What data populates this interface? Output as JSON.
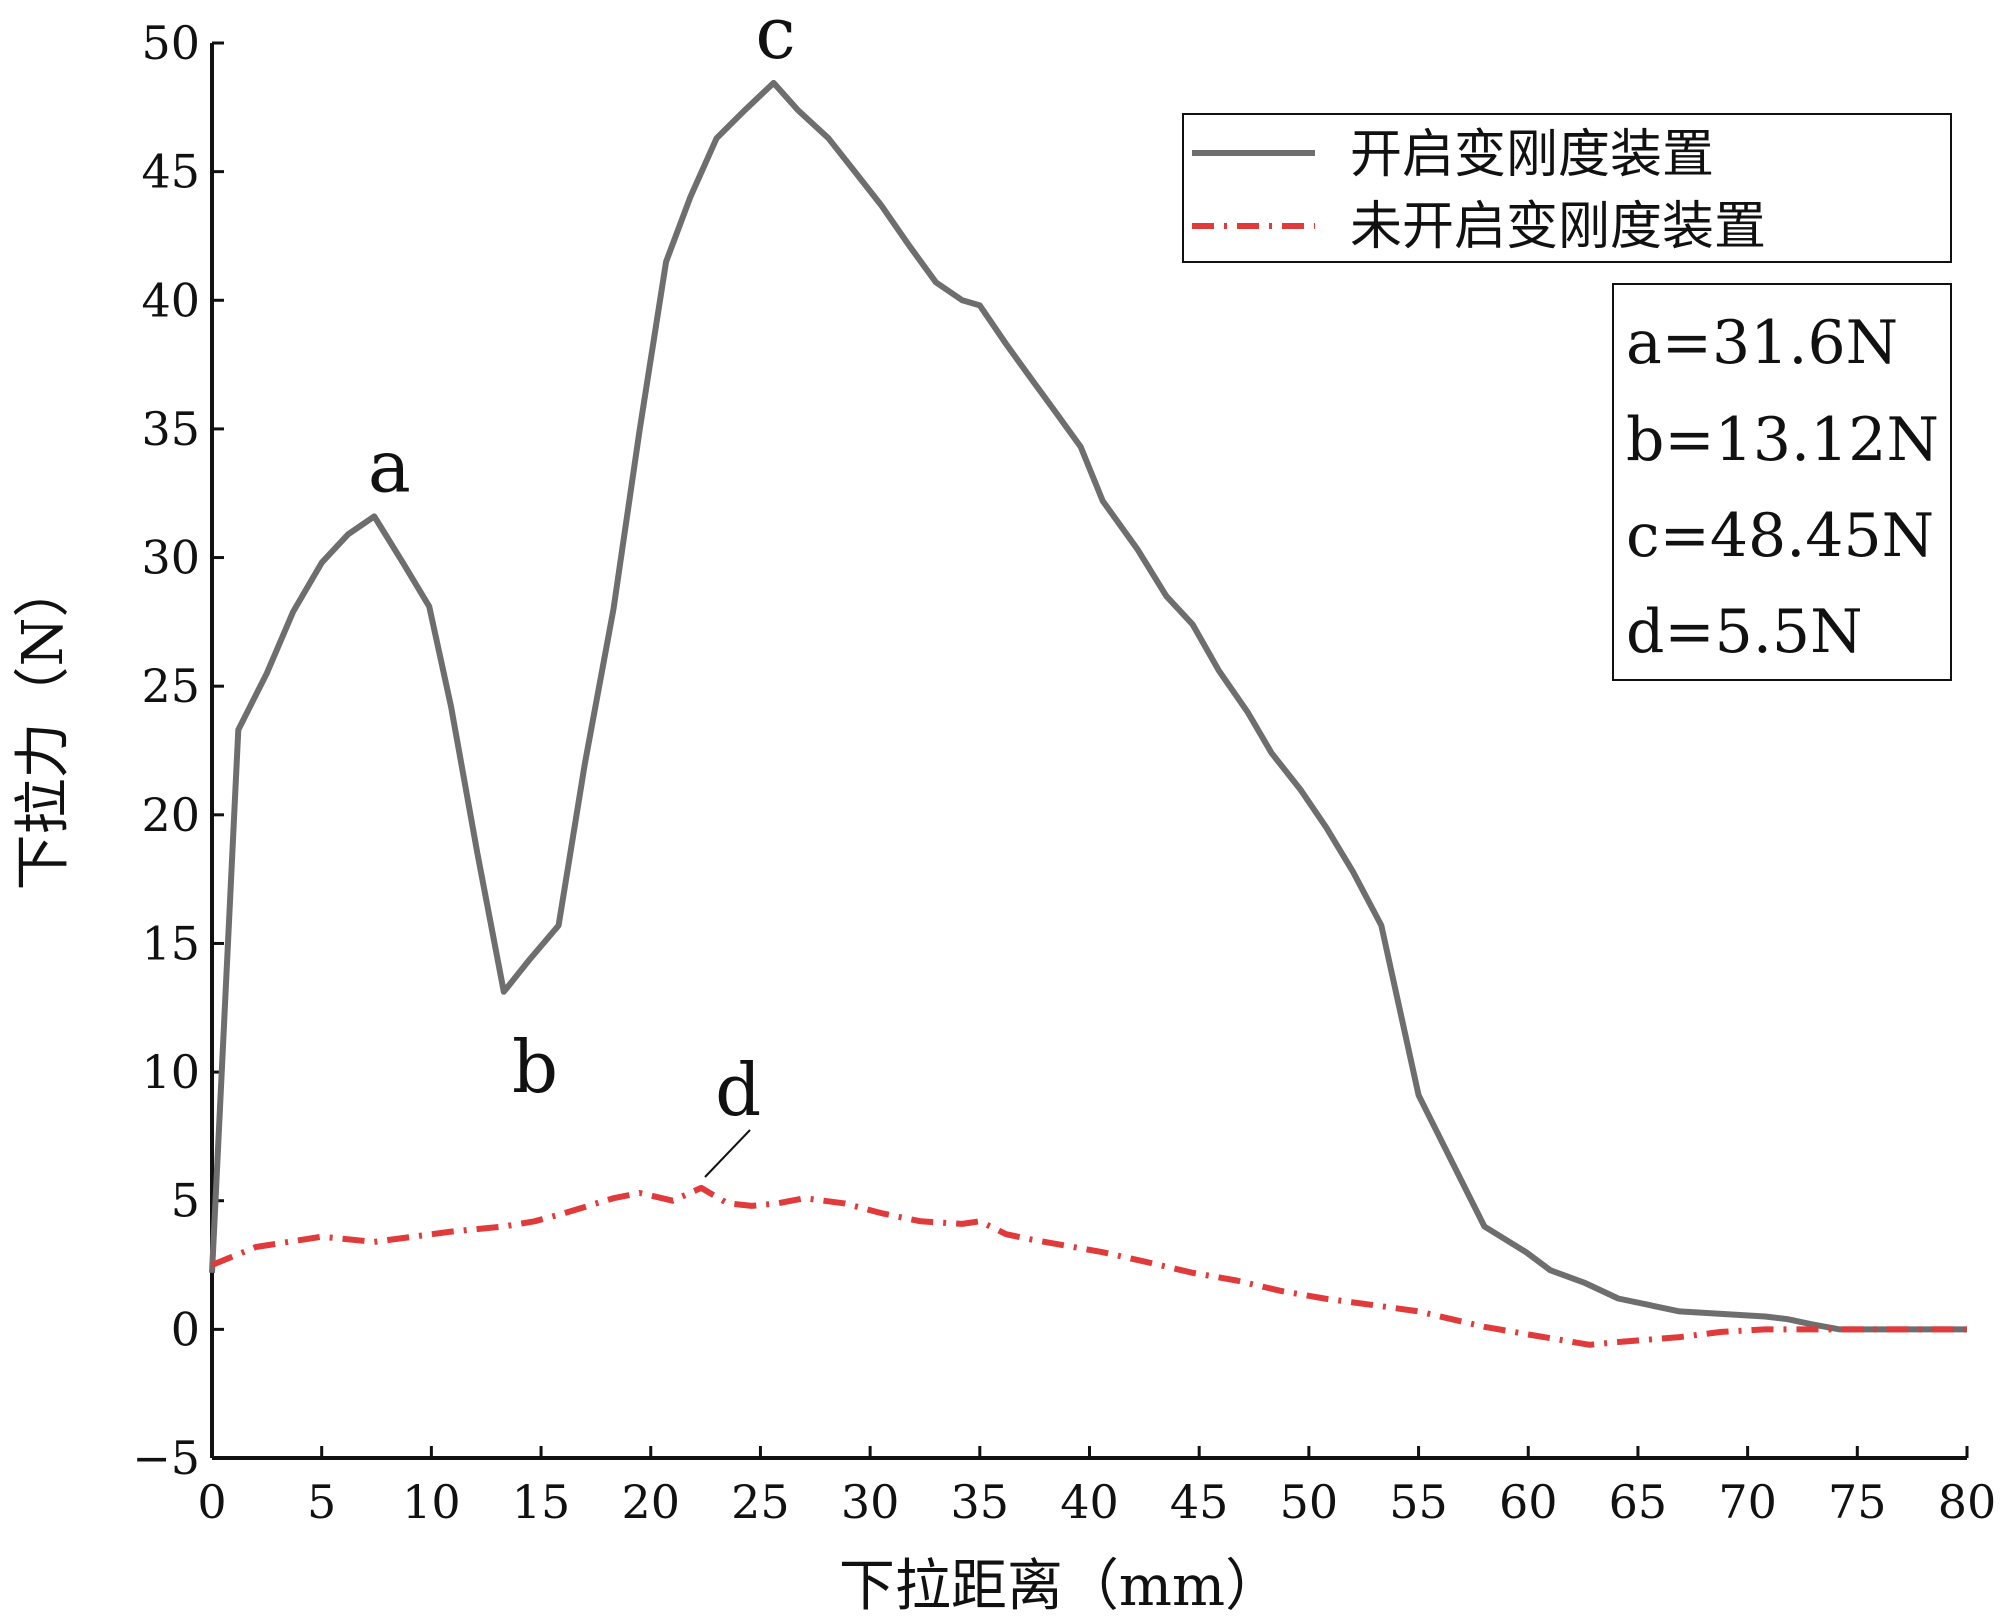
{
  "chart_data": {
    "type": "line",
    "title": "",
    "xlabel": "下拉距离（mm）",
    "ylabel": "下拉力（N）",
    "xlim": [
      0,
      80
    ],
    "ylim": [
      -5,
      50
    ],
    "xticks": [
      0,
      5,
      10,
      15,
      20,
      25,
      30,
      35,
      40,
      45,
      50,
      55,
      60,
      65,
      70,
      75,
      80
    ],
    "yticks": [
      -5,
      0,
      5,
      10,
      15,
      20,
      25,
      30,
      35,
      40,
      45,
      50
    ],
    "grid": false,
    "legend_position": "top-right",
    "series": [
      {
        "name": "开启变刚度装置",
        "color": "#6e6e6e",
        "style": "solid",
        "x": [
          0,
          1.2,
          2.5,
          3.7,
          5.0,
          6.2,
          7.4,
          8.7,
          9.9,
          10.9,
          12.1,
          13.3,
          14.5,
          15.8,
          17.0,
          18.3,
          19.5,
          20.7,
          21.8,
          23.0,
          24.3,
          25.6,
          26.7,
          28.1,
          29.3,
          30.5,
          31.8,
          33.0,
          34.2,
          35.0,
          36.2,
          37.3,
          38.5,
          39.6,
          40.6,
          42.2,
          43.5,
          44.7,
          45.9,
          47.2,
          48.3,
          49.6,
          50.8,
          52.0,
          53.3,
          55.0,
          58.0,
          59.9,
          61.0,
          62.6,
          64.1,
          66.9,
          68.8,
          70.8,
          71.8,
          72.9,
          74.2,
          75.4,
          76.5,
          77.6,
          78.9,
          80.0
        ],
        "values": [
          2.2,
          23.3,
          25.5,
          27.9,
          29.8,
          30.9,
          31.6,
          29.8,
          28.1,
          24.2,
          18.5,
          13.12,
          14.4,
          15.7,
          22.0,
          28.0,
          35.0,
          41.5,
          44.0,
          46.3,
          47.4,
          48.45,
          47.4,
          46.3,
          45.0,
          43.7,
          42.1,
          40.7,
          40.0,
          39.8,
          38.3,
          37.0,
          35.6,
          34.3,
          32.2,
          30.3,
          28.5,
          27.4,
          25.6,
          24.0,
          22.4,
          21.0,
          19.5,
          17.8,
          15.7,
          9.1,
          4.0,
          3.0,
          2.3,
          1.8,
          1.2,
          0.7,
          0.6,
          0.5,
          0.4,
          0.2,
          0.0,
          0.0,
          0.0,
          0.0,
          0.0,
          0.0
        ]
      },
      {
        "name": "未开启变刚度装置",
        "color": "#e03a3a",
        "style": "dashdot",
        "x": [
          0,
          2.0,
          5.0,
          7.4,
          10.9,
          13.3,
          14.7,
          16.0,
          18.3,
          19.5,
          21.0,
          22.3,
          23.5,
          24.6,
          25.8,
          27.0,
          28.8,
          30.6,
          32.3,
          34.2,
          35.0,
          36.2,
          37.3,
          40.6,
          42.7,
          44.7,
          46.7,
          48.7,
          50.7,
          53.3,
          55.0,
          58.0,
          60.0,
          62.8,
          64.0,
          66.9,
          68.8,
          70.8,
          72.9,
          74.2,
          76.5,
          78.0,
          80.0
        ],
        "values": [
          2.5,
          3.2,
          3.6,
          3.4,
          3.8,
          4.0,
          4.2,
          4.5,
          5.1,
          5.3,
          5.0,
          5.5,
          4.9,
          4.8,
          4.9,
          5.1,
          4.9,
          4.5,
          4.2,
          4.1,
          4.2,
          3.7,
          3.5,
          3.0,
          2.6,
          2.2,
          1.9,
          1.5,
          1.2,
          0.9,
          0.7,
          0.1,
          -0.2,
          -0.6,
          -0.5,
          -0.3,
          -0.1,
          0.0,
          0.0,
          0.0,
          0.0,
          0.0,
          0.0
        ]
      }
    ],
    "point_labels": [
      {
        "label": "a",
        "x": 7.4,
        "y": 31.6
      },
      {
        "label": "b",
        "x": 14.5,
        "y": 13.12
      },
      {
        "label": "c",
        "x": 25.6,
        "y": 48.45
      },
      {
        "label": "d",
        "x": 22.3,
        "y": 5.5
      }
    ],
    "annotations": [
      "a=31.6N",
      "b=13.12N",
      "c=48.45N",
      "d=5.5N"
    ]
  }
}
